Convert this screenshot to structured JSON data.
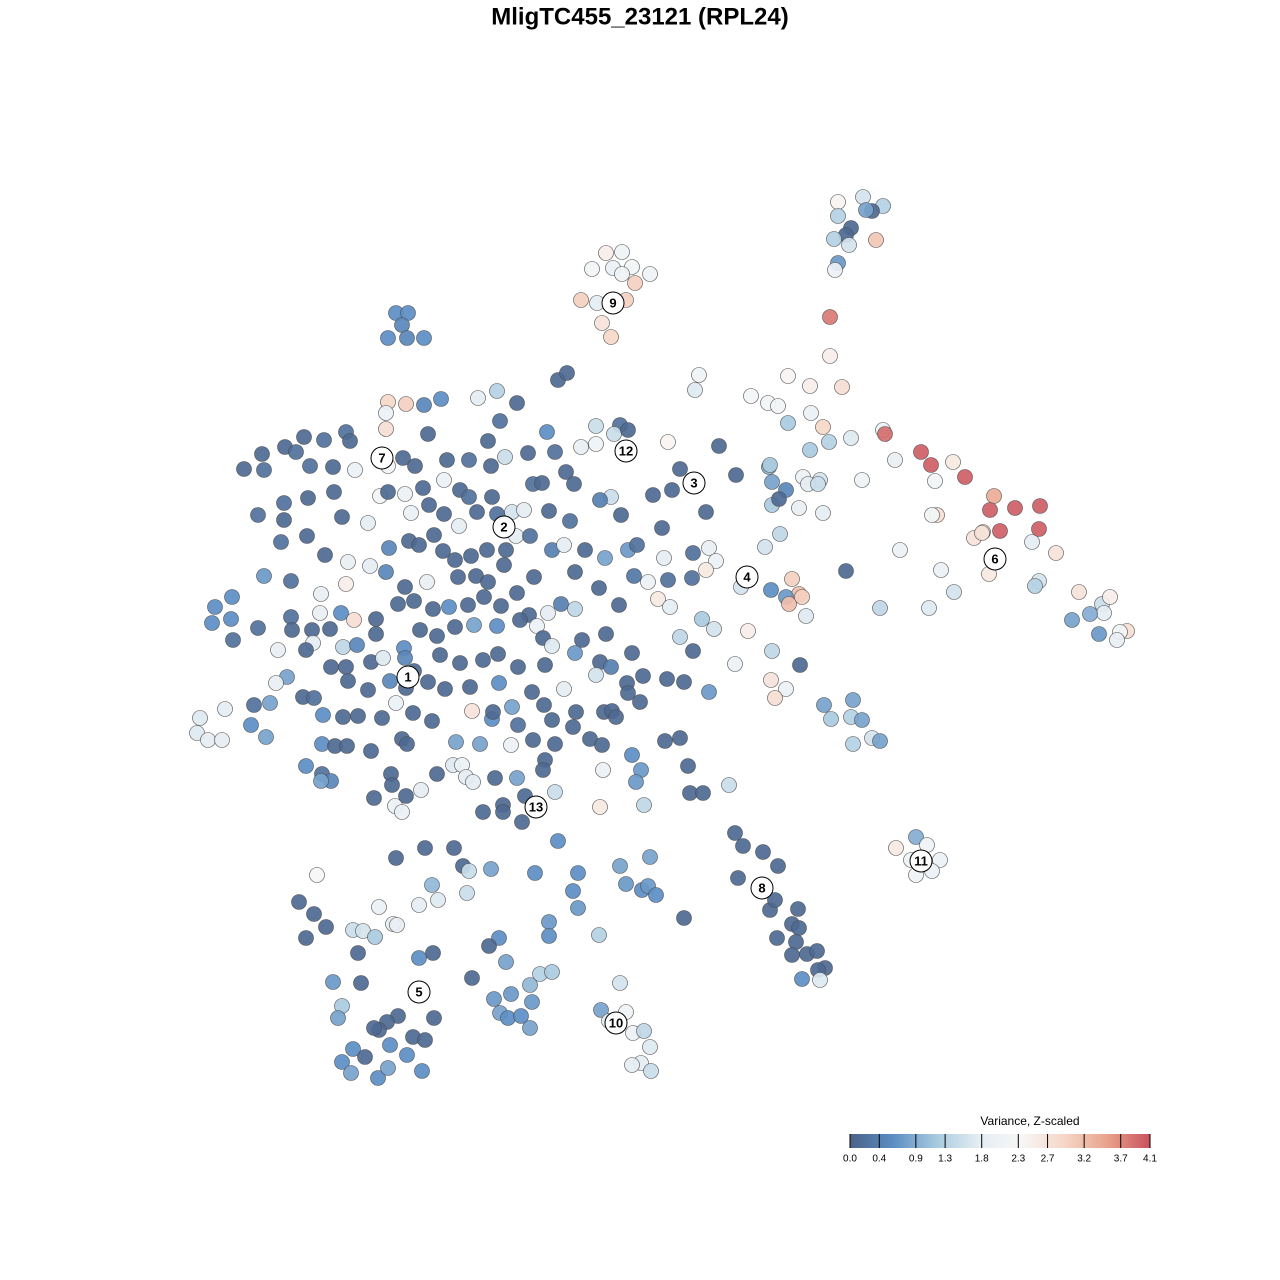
{
  "chart_data": {
    "type": "scatter",
    "title": "MligTC455_23121 (RPL24)",
    "xlim": [
      100,
      1200
    ],
    "ylim": [
      1100,
      100
    ],
    "x": [
      838,
      863,
      883,
      872,
      866,
      838,
      851,
      846,
      834,
      849,
      876,
      838,
      835,
      830,
      830,
      606,
      622,
      592,
      613,
      632,
      650,
      622,
      635,
      581,
      597,
      626,
      602,
      611,
      396,
      408,
      402,
      388,
      407,
      424,
      558,
      567,
      388,
      406,
      386,
      424,
      441,
      478,
      497,
      517,
      386,
      500,
      346,
      324,
      304,
      285,
      262,
      296,
      350,
      428,
      488,
      547,
      596,
      620,
      581,
      596,
      614,
      628,
      668,
      719,
      244,
      264,
      310,
      333,
      355,
      388,
      403,
      415,
      447,
      469,
      491,
      505,
      528,
      555,
      566,
      680,
      736,
      769,
      803,
      820,
      862,
      334,
      380,
      388,
      405,
      423,
      444,
      460,
      469,
      492,
      533,
      542,
      574,
      611,
      653,
      672,
      772,
      786,
      808,
      818,
      258,
      284,
      308,
      342,
      368,
      411,
      429,
      444,
      459,
      477,
      497,
      512,
      524,
      549,
      570,
      600,
      621,
      662,
      706,
      772,
      779,
      799,
      823,
      284,
      281,
      307,
      325,
      348,
      389,
      409,
      419,
      434,
      443,
      455,
      471,
      487,
      506,
      516,
      530,
      552,
      564,
      585,
      605,
      628,
      637,
      664,
      693,
      709,
      716,
      765,
      780,
      846,
      900,
      974,
      983,
      1032,
      1056,
      264,
      291,
      321,
      346,
      370,
      386,
      405,
      427,
      458,
      476,
      488,
      504,
      517,
      534,
      575,
      599,
      634,
      648,
      668,
      692,
      706,
      741,
      771,
      792,
      799,
      941,
      989,
      1039,
      1035,
      232,
      215,
      212,
      231,
      291,
      320,
      341,
      354,
      376,
      398,
      414,
      433,
      449,
      468,
      484,
      501,
      529,
      548,
      561,
      575,
      619,
      658,
      670,
      702,
      714,
      748,
      786,
      806,
      789,
      802,
      880,
      929,
      954,
      1079,
      1102,
      1110,
      1104,
      1090,
      1072,
      1127,
      1120,
      1117,
      1099,
      258,
      278,
      292,
      312,
      313,
      330,
      343,
      357,
      376,
      404,
      420,
      437,
      455,
      474,
      497,
      520,
      537,
      543,
      552,
      582,
      606,
      632,
      680,
      693,
      735,
      772,
      800,
      233,
      306,
      331,
      346,
      371,
      383,
      405,
      414,
      440,
      460,
      483,
      498,
      518,
      545,
      575,
      600,
      611,
      627,
      643,
      667,
      684,
      709,
      771,
      786,
      775,
      287,
      276,
      348,
      368,
      390,
      406,
      428,
      445,
      470,
      499,
      532,
      564,
      596,
      628,
      640,
      303,
      314,
      254,
      270,
      225,
      200,
      197,
      208,
      222,
      251,
      266,
      323,
      343,
      358,
      382,
      396,
      413,
      432,
      472,
      492,
      493,
      512,
      518,
      544,
      552,
      573,
      576,
      604,
      612,
      616,
      590,
      602,
      632,
      665,
      680,
      824,
      853,
      831,
      851,
      862,
      853,
      872,
      880,
      322,
      335,
      347,
      371,
      402,
      407,
      456,
      480,
      511,
      533,
      555,
      306,
      322,
      331,
      321,
      391,
      392,
      437,
      453,
      462,
      466,
      473,
      495,
      517,
      545,
      543,
      603,
      641,
      688,
      636,
      374,
      395,
      402,
      406,
      421,
      483,
      503,
      503,
      525,
      522,
      555,
      600,
      644,
      690,
      703,
      729,
      735,
      743,
      763,
      778,
      738,
      770,
      775,
      798,
      792,
      799,
      777,
      796,
      807,
      792,
      817,
      825,
      818,
      802,
      820,
      916,
      927,
      896,
      911,
      940,
      916,
      932,
      396,
      425,
      454,
      463,
      491,
      535,
      558,
      317,
      432,
      469,
      578,
      620,
      650,
      626,
      642,
      648,
      656,
      299,
      314,
      379,
      419,
      438,
      467,
      573,
      578,
      306,
      326,
      353,
      363,
      375,
      393,
      397,
      499,
      489,
      549,
      549,
      599,
      684,
      358,
      419,
      433,
      472,
      506,
      540,
      552,
      333,
      361,
      342,
      338,
      532,
      511,
      494,
      530,
      500,
      508,
      521,
      530,
      620,
      601,
      626,
      609,
      633,
      644,
      650,
      641,
      632,
      651,
      434,
      398,
      387,
      379,
      374,
      413,
      425,
      390,
      353,
      365,
      342,
      351,
      378,
      388,
      407,
      422,
      751,
      768,
      778,
      788,
      810,
      842,
      811,
      823,
      788,
      851,
      829,
      883,
      885,
      895,
      921,
      931,
      953,
      965,
      935,
      994,
      990,
      1015,
      1040,
      1039,
      1000,
      937,
      932,
      982,
      699,
      695,
      810,
      770
    ],
    "y": [
      202,
      197,
      206,
      211,
      210,
      216,
      228,
      235,
      239,
      245,
      240,
      263,
      270,
      317,
      356,
      253,
      252,
      269,
      268,
      267,
      274,
      274,
      283,
      300,
      303,
      300,
      323,
      337,
      313,
      313,
      325,
      338,
      338,
      338,
      380,
      373,
      402,
      404,
      413,
      405,
      399,
      398,
      391,
      403,
      429,
      421,
      432,
      440,
      437,
      447,
      454,
      452,
      441,
      434,
      441,
      432,
      426,
      425,
      447,
      444,
      434,
      430,
      442,
      446,
      469,
      470,
      466,
      467,
      470,
      466,
      458,
      466,
      460,
      460,
      466,
      457,
      453,
      452,
      472,
      469,
      475,
      467,
      477,
      480,
      480,
      492,
      496,
      492,
      494,
      488,
      480,
      490,
      497,
      497,
      484,
      483,
      484,
      497,
      495,
      490,
      482,
      490,
      484,
      484,
      515,
      503,
      498,
      517,
      523,
      513,
      505,
      514,
      526,
      512,
      514,
      512,
      510,
      511,
      521,
      500,
      515,
      528,
      512,
      505,
      499,
      508,
      513,
      520,
      542,
      536,
      555,
      562,
      548,
      541,
      545,
      535,
      551,
      560,
      556,
      550,
      550,
      536,
      536,
      550,
      545,
      550,
      558,
      550,
      545,
      558,
      553,
      548,
      561,
      547,
      534,
      571,
      550,
      538,
      532,
      542,
      553,
      576,
      581,
      594,
      584,
      566,
      572,
      587,
      582,
      577,
      576,
      582,
      565,
      593,
      577,
      572,
      588,
      576,
      582,
      580,
      578,
      570,
      587,
      590,
      579,
      594,
      570,
      574,
      581,
      586,
      597,
      607,
      623,
      619,
      617,
      613,
      613,
      620,
      619,
      604,
      601,
      609,
      607,
      605,
      597,
      606,
      615,
      613,
      604,
      609,
      605,
      599,
      607,
      619,
      629,
      631,
      597,
      616,
      604,
      597,
      608,
      608,
      592,
      592,
      604,
      597,
      613,
      614,
      620,
      631,
      632,
      640,
      634,
      628,
      650,
      630,
      630,
      643,
      629,
      647,
      645,
      634,
      648,
      630,
      636,
      627,
      625,
      626,
      620,
      626,
      638,
      646,
      640,
      634,
      653,
      637,
      651,
      664,
      651,
      665,
      640,
      650,
      667,
      667,
      662,
      658,
      658,
      671,
      655,
      663,
      660,
      654,
      667,
      665,
      653,
      662,
      667,
      683,
      676,
      679,
      682,
      692,
      680,
      689,
      698,
      677,
      683,
      681,
      690,
      681,
      688,
      682,
      689,
      687,
      683,
      692,
      689,
      675,
      693,
      702,
      697,
      698,
      705,
      703,
      709,
      718,
      733,
      740,
      740,
      725,
      737,
      715,
      717,
      716,
      718,
      703,
      713,
      721,
      711,
      719,
      712,
      707,
      725,
      705,
      720,
      727,
      712,
      712,
      711,
      717,
      739,
      745,
      755,
      741,
      738,
      705,
      700,
      719,
      717,
      720,
      744,
      738,
      741,
      744,
      746,
      746,
      751,
      739,
      744,
      742,
      744,
      745,
      740,
      744,
      766,
      774,
      781,
      781,
      774,
      785,
      774,
      765,
      765,
      777,
      782,
      778,
      778,
      760,
      770,
      770,
      770,
      766,
      782,
      798,
      806,
      812,
      796,
      790,
      812,
      805,
      812,
      796,
      822,
      792,
      807,
      805,
      793,
      793,
      785,
      833,
      846,
      852,
      866,
      878,
      910,
      900,
      909,
      924,
      928,
      938,
      942,
      954,
      955,
      951,
      968,
      970,
      979,
      980,
      837,
      845,
      848,
      860,
      860,
      875,
      871,
      858,
      848,
      848,
      866,
      869,
      873,
      841,
      875,
      885,
      871,
      873,
      866,
      857,
      884,
      890,
      886,
      895,
      902,
      914,
      907,
      905,
      900,
      893,
      891,
      908,
      938,
      927,
      930,
      931,
      937,
      924,
      925,
      938,
      946,
      922,
      936,
      935,
      918,
      953,
      958,
      953,
      978,
      962,
      974,
      972,
      982,
      983,
      1006,
      1018,
      1002,
      994,
      999,
      985,
      1013,
      1018,
      1016,
      1028,
      983,
      1010,
      1012,
      1021,
      1033,
      1031,
      1047,
      1063,
      1065,
      1071,
      1018,
      1016,
      1022,
      1030,
      1028,
      1037,
      1040,
      1045,
      1049,
      1057,
      1062,
      1073,
      1078,
      1068,
      1055,
      1071,
      396,
      403,
      406,
      376,
      386,
      387,
      413,
      427,
      423,
      438,
      442,
      430,
      434,
      460,
      452,
      465,
      462,
      477,
      481,
      496,
      510,
      508,
      506,
      529,
      531,
      515,
      515,
      533,
      375,
      390,
      450,
      465
    ],
    "values": [
      2.4,
      1.6,
      1.3,
      0.1,
      0.8,
      1.3,
      0.1,
      0.1,
      1.3,
      1.6,
      3.1,
      0.7,
      2.0,
      3.8,
      2.5,
      2.5,
      2.1,
      2.2,
      2.0,
      2.2,
      2.1,
      2.1,
      3.0,
      3.0,
      1.8,
      3.0,
      2.7,
      2.9,
      0.6,
      0.6,
      0.5,
      0.6,
      0.5,
      0.6,
      0.1,
      0.1,
      2.9,
      3.0,
      2.0,
      0.5,
      0.6,
      1.8,
      1.3,
      0.1,
      2.8,
      0.2,
      0.2,
      0.2,
      0.1,
      0.1,
      0.1,
      0.2,
      0.1,
      0.1,
      0.1,
      0.6,
      1.5,
      0.2,
      1.9,
      2.1,
      1.5,
      0.1,
      2.4,
      0.1,
      0.1,
      0.2,
      0.2,
      0.1,
      2.0,
      2.2,
      0.1,
      0.1,
      0.1,
      0.2,
      0.1,
      1.5,
      0.1,
      0.2,
      0.1,
      0.1,
      0.1,
      1.0,
      2.0,
      1.6,
      2.1,
      0.1,
      2.2,
      0.1,
      2.0,
      0.1,
      2.0,
      0.1,
      0.2,
      0.1,
      0.2,
      0.1,
      0.1,
      1.5,
      0.1,
      0.1,
      0.8,
      0.5,
      1.8,
      1.5,
      0.2,
      0.2,
      0.1,
      0.1,
      1.8,
      2.0,
      0.1,
      0.1,
      1.8,
      0.1,
      0.2,
      1.6,
      1.8,
      0.1,
      0.2,
      0.4,
      0.1,
      0.1,
      0.1,
      1.2,
      0.1,
      1.9,
      1.8,
      0.1,
      0.2,
      0.1,
      0.1,
      1.9,
      0.5,
      0.1,
      0.1,
      0.1,
      0.1,
      0.1,
      0.1,
      0.1,
      0.1,
      1.8,
      0.2,
      0.4,
      1.8,
      0.1,
      0.8,
      0.7,
      0.2,
      1.8,
      0.2,
      1.9,
      2.0,
      1.6,
      1.4,
      0.1,
      2.0,
      2.7,
      2.9,
      1.8,
      2.7,
      0.7,
      0.2,
      1.9,
      2.5,
      1.8,
      0.5,
      0.1,
      1.9,
      0.1,
      0.1,
      0.1,
      0.1,
      0.1,
      0.1,
      0.1,
      0.1,
      0.3,
      2.0,
      0.2,
      0.2,
      2.6,
      1.6,
      0.6,
      3.0,
      3.2,
      2.0,
      2.6,
      1.6,
      1.3,
      0.6,
      0.6,
      0.6,
      0.6,
      0.2,
      1.9,
      0.6,
      2.8,
      0.1,
      0.1,
      0.1,
      0.1,
      0.6,
      0.1,
      0.1,
      0.1,
      0.1,
      1.8,
      0.4,
      1.4,
      0.1,
      2.6,
      1.8,
      1.2,
      1.6,
      2.5,
      0.7,
      1.7,
      3.2,
      3.0,
      1.4,
      1.7,
      1.6,
      2.7,
      1.5,
      2.5,
      1.8,
      0.9,
      0.8,
      2.8,
      2.2,
      1.9,
      0.7,
      0.2,
      1.9,
      0.1,
      0.1,
      1.8,
      0.1,
      1.4,
      0.5,
      0.1,
      0.6,
      0.1,
      0.1,
      0.1,
      0.8,
      0.6,
      0.1,
      2.0,
      0.1,
      1.7,
      0.1,
      0.1,
      0.1,
      1.4,
      0.1,
      2.0,
      1.4,
      0.1,
      0.2,
      0.1,
      0.1,
      0.1,
      0.1,
      1.7,
      0.5,
      0.1,
      0.1,
      0.1,
      0.1,
      0.1,
      0.1,
      0.1,
      0.7,
      0.1,
      0.4,
      0.1,
      0.1,
      0.1,
      0.1,
      0.7,
      2.7,
      2.0,
      2.8,
      0.8,
      1.9,
      0.1,
      0.1,
      0.5,
      0.1,
      0.1,
      0.1,
      0.1,
      0.6,
      0.1,
      1.8,
      1.6,
      0.1,
      0.1,
      0.1,
      0.2,
      0.2,
      0.8,
      1.8,
      1.7,
      1.7,
      1.8,
      1.8,
      0.6,
      0.8,
      0.6,
      0.1,
      0.1,
      0.1,
      2.0,
      0.1,
      0.1,
      2.7,
      0.6,
      0.1,
      0.8,
      0.2,
      0.1,
      0.1,
      0.1,
      0.1,
      0.1,
      0.1,
      0.1,
      0.1,
      0.1,
      0.6,
      0.1,
      0.1,
      0.8,
      0.8,
      1.2,
      1.3,
      0.8,
      1.3,
      1.6,
      0.8,
      0.6,
      0.1,
      0.1,
      0.1,
      0.1,
      0.1,
      0.8,
      0.8,
      2.0,
      0.1,
      0.1,
      0.6,
      0.2,
      0.5,
      0.8,
      0.1,
      0.1,
      0.1,
      1.7,
      2.0,
      1.8,
      1.8,
      0.1,
      0.8,
      0.1,
      0.1,
      2.0,
      0.7,
      0.1,
      0.7,
      0.1,
      2.0,
      2.0,
      0.1,
      1.8,
      0.1,
      0.1,
      0.1,
      0.1,
      0.1,
      1.5,
      2.6,
      1.4,
      0.1,
      0.1,
      1.5,
      0.1,
      0.1,
      0.1,
      0.1,
      0.1,
      0.1,
      0.1,
      0.1,
      0.1,
      0.1,
      0.1,
      0.1,
      0.1,
      0.1,
      0.1,
      0.1,
      0.1,
      0.6,
      1.7,
      0.9,
      2.1,
      2.6,
      2.1,
      2.0,
      2.1,
      2.0,
      0.1,
      0.1,
      0.1,
      0.1,
      0.8,
      0.6,
      0.6,
      2.3,
      1.0,
      1.5,
      0.6,
      0.8,
      0.8,
      0.7,
      0.6,
      0.7,
      0.6,
      0.1,
      0.1,
      2.0,
      1.8,
      1.7,
      1.5,
      0.6,
      0.7,
      0.1,
      0.1,
      1.5,
      1.6,
      1.2,
      1.8,
      1.9,
      0.6,
      0.1,
      0.7,
      0.6,
      1.3,
      0.1,
      0.1,
      0.6,
      0.1,
      0.1,
      0.8,
      1.3,
      1.2,
      0.7,
      0.1,
      1.2,
      0.8,
      0.7,
      0.7,
      0.7,
      1.0,
      0.8,
      0.6,
      0.6,
      0.8,
      1.6,
      0.8,
      2.1,
      1.8,
      2.0,
      1.4,
      1.7,
      1.8,
      1.8,
      1.5,
      0.1,
      0.1,
      0.1,
      0.1,
      0.1,
      0.1,
      0.1,
      0.6,
      0.6,
      0.1,
      0.6,
      0.8,
      0.6,
      0.8,
      0.6,
      0.6,
      2.2,
      2.2,
      2.2,
      2.4,
      2.5,
      2.8,
      2.0,
      2.9,
      1.2,
      1.7,
      1.3,
      2.0,
      3.9,
      1.9,
      4.0,
      4.0,
      2.6,
      4.0,
      2.2,
      3.4,
      4.0,
      4.0,
      4.0,
      4.0,
      4.0,
      2.8,
      2.2,
      2.7,
      2.1,
      1.7,
      1.2,
      1.2
    ],
    "cluster_labels": [
      {
        "text": "1",
        "x": 408,
        "y": 677
      },
      {
        "text": "2",
        "x": 504,
        "y": 527
      },
      {
        "text": "3",
        "x": 694,
        "y": 483
      },
      {
        "text": "4",
        "x": 747,
        "y": 577
      },
      {
        "text": "5",
        "x": 419,
        "y": 992
      },
      {
        "text": "6",
        "x": 995,
        "y": 559
      },
      {
        "text": "7",
        "x": 382,
        "y": 458
      },
      {
        "text": "8",
        "x": 762,
        "y": 888
      },
      {
        "text": "9",
        "x": 613,
        "y": 303
      },
      {
        "text": "10",
        "x": 616,
        "y": 1023
      },
      {
        "text": "11",
        "x": 921,
        "y": 861
      },
      {
        "text": "12",
        "x": 626,
        "y": 451
      },
      {
        "text": "13",
        "x": 536,
        "y": 807
      }
    ],
    "colorbar": {
      "title": "Variance, Z-scaled",
      "lim": [
        0,
        4.1
      ],
      "ticks": [
        {
          "value": 0,
          "label": "0.0"
        },
        0.4,
        0.9,
        1.3,
        1.8,
        2.3,
        2.7,
        3.2,
        3.7,
        4.1
      ],
      "colors": [
        "#4a6288",
        "#5b8dc3",
        "#a7c9df",
        "#e4edf3",
        "#f7f7f7",
        "#f6d6c7",
        "#e9a38b",
        "#c8525e"
      ]
    }
  }
}
